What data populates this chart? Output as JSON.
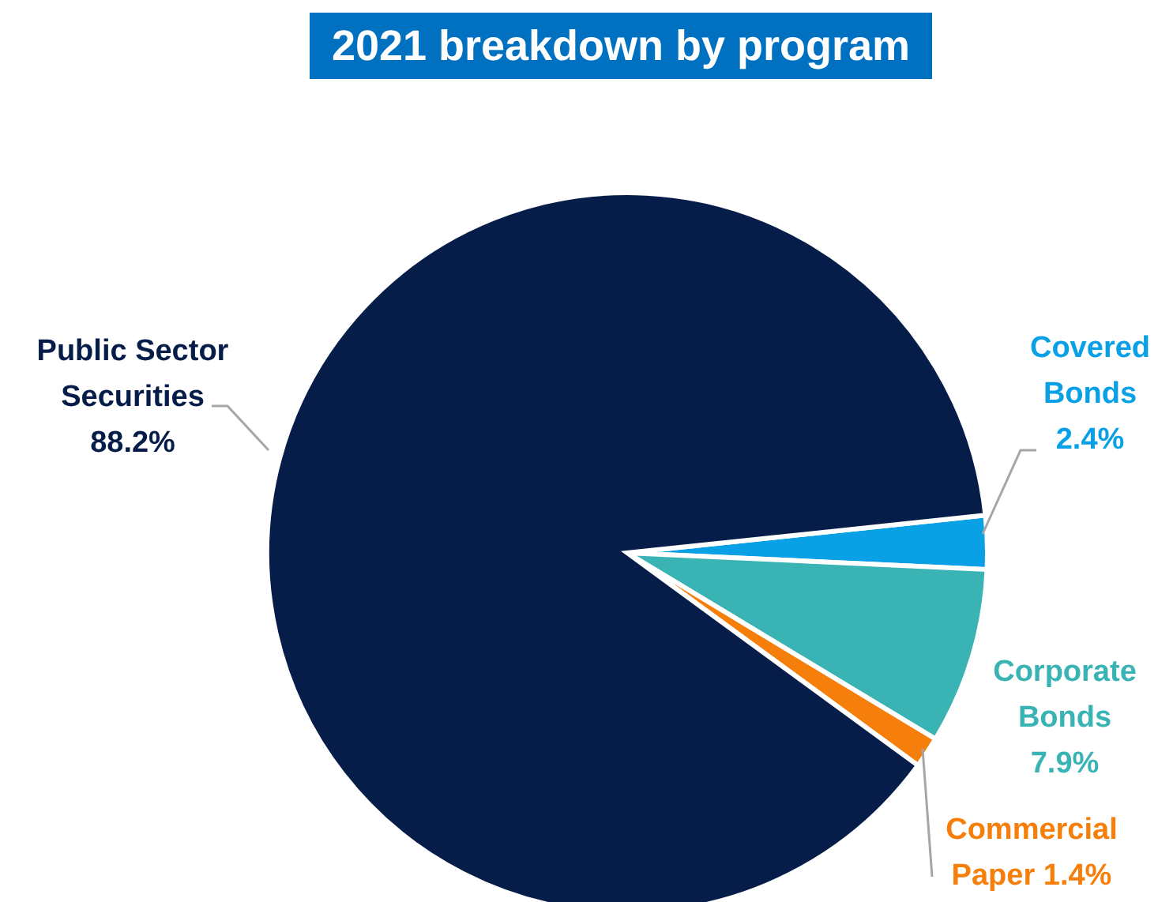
{
  "chart_data": {
    "type": "pie",
    "title": "2021 breakdown by program",
    "categories": [
      "Covered Bonds",
      "Corporate Bonds",
      "Commercial Paper",
      "Public Sector Securities"
    ],
    "values": [
      2.4,
      7.9,
      1.4,
      88.2
    ],
    "colors": [
      "#0aa0e6",
      "#3ab3b5",
      "#f57f0a",
      "#061d4a"
    ],
    "value_labels": [
      "2.4%",
      "7.9%",
      "1.4%",
      "88.2%"
    ],
    "legend": false
  }
}
